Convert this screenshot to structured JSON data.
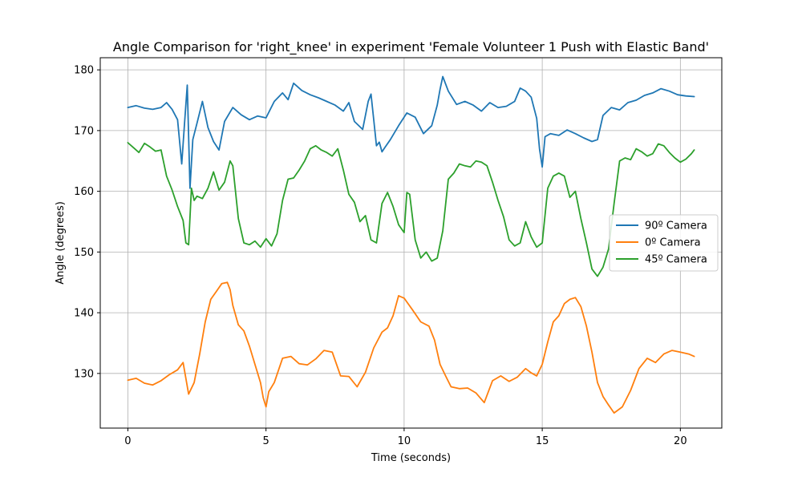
{
  "chart_data": {
    "type": "line",
    "title": "Angle Comparison for 'right_knee' in experiment 'Female Volunteer 1 Push with Elastic Band'",
    "xlabel": "Time (seconds)",
    "ylabel": "Angle (degrees)",
    "xlim": [
      -1,
      21.5
    ],
    "ylim": [
      121,
      182
    ],
    "xticks": [
      0,
      5,
      10,
      15,
      20
    ],
    "yticks": [
      130,
      140,
      150,
      160,
      170,
      180
    ],
    "grid": true,
    "legend_position": "center-right",
    "series": [
      {
        "name": "90º Camera",
        "color": "#1f77b4",
        "x": [
          0,
          0.3,
          0.6,
          0.9,
          1.2,
          1.4,
          1.6,
          1.8,
          1.95,
          2.05,
          2.15,
          2.25,
          2.35,
          2.5,
          2.7,
          2.9,
          3.1,
          3.3,
          3.5,
          3.8,
          4.1,
          4.4,
          4.7,
          5.0,
          5.3,
          5.6,
          5.8,
          6.0,
          6.3,
          6.6,
          6.9,
          7.2,
          7.5,
          7.8,
          8.0,
          8.2,
          8.5,
          8.7,
          8.8,
          8.9,
          9.0,
          9.1,
          9.2,
          9.3,
          9.5,
          9.8,
          10.1,
          10.4,
          10.7,
          11.0,
          11.2,
          11.3,
          11.4,
          11.6,
          11.9,
          12.2,
          12.5,
          12.8,
          13.1,
          13.4,
          13.7,
          14.0,
          14.2,
          14.4,
          14.6,
          14.8,
          14.9,
          15.0,
          15.1,
          15.3,
          15.6,
          15.9,
          16.2,
          16.5,
          16.8,
          17.0,
          17.2,
          17.5,
          17.8,
          18.1,
          18.4,
          18.7,
          19.0,
          19.3,
          19.6,
          19.9,
          20.2,
          20.5
        ],
        "y": [
          173.8,
          174.1,
          173.7,
          173.5,
          173.8,
          174.6,
          173.5,
          171.8,
          164.5,
          171.2,
          177.5,
          160.5,
          168.5,
          171.2,
          174.8,
          170.5,
          168.2,
          166.8,
          171.5,
          173.8,
          172.6,
          171.8,
          172.4,
          172.1,
          174.8,
          176.2,
          175.1,
          177.8,
          176.6,
          175.9,
          175.4,
          174.8,
          174.2,
          173.2,
          174.6,
          171.5,
          170.2,
          174.8,
          176.0,
          171.8,
          167.5,
          168.1,
          166.5,
          167.2,
          168.5,
          170.8,
          172.9,
          172.2,
          169.5,
          170.8,
          174.2,
          176.8,
          178.9,
          176.5,
          174.3,
          174.8,
          174.2,
          173.2,
          174.6,
          173.8,
          174.0,
          174.8,
          177.0,
          176.5,
          175.5,
          172.0,
          167.0,
          164.0,
          169.0,
          169.5,
          169.2,
          170.1,
          169.5,
          168.8,
          168.2,
          168.5,
          172.5,
          173.8,
          173.4,
          174.6,
          175.0,
          175.8,
          176.2,
          176.9,
          176.5,
          175.9,
          175.7,
          175.6
        ]
      },
      {
        "name": "0º Camera",
        "color": "#ff7f0e",
        "x": [
          0,
          0.3,
          0.6,
          0.9,
          1.2,
          1.5,
          1.8,
          2.0,
          2.2,
          2.4,
          2.6,
          2.8,
          3.0,
          3.2,
          3.4,
          3.6,
          3.7,
          3.8,
          4.0,
          4.2,
          4.4,
          4.6,
          4.8,
          4.9,
          5.0,
          5.1,
          5.3,
          5.6,
          5.9,
          6.2,
          6.5,
          6.8,
          7.1,
          7.4,
          7.7,
          8.0,
          8.3,
          8.6,
          8.9,
          9.2,
          9.4,
          9.6,
          9.8,
          10.0,
          10.3,
          10.6,
          10.9,
          11.1,
          11.3,
          11.5,
          11.7,
          12.0,
          12.3,
          12.6,
          12.9,
          13.2,
          13.5,
          13.8,
          14.1,
          14.4,
          14.6,
          14.8,
          15.0,
          15.2,
          15.4,
          15.6,
          15.8,
          16.0,
          16.2,
          16.4,
          16.6,
          16.8,
          17.0,
          17.2,
          17.4,
          17.6,
          17.9,
          18.2,
          18.5,
          18.8,
          19.1,
          19.4,
          19.7,
          20.0,
          20.3,
          20.5
        ],
        "y": [
          128.9,
          129.2,
          128.4,
          128.1,
          128.8,
          129.8,
          130.6,
          131.8,
          126.6,
          128.5,
          133.2,
          138.5,
          142.2,
          143.5,
          144.8,
          145.0,
          143.8,
          141.2,
          138.0,
          137.0,
          134.5,
          131.5,
          128.5,
          126.0,
          124.5,
          127.0,
          128.5,
          132.5,
          132.8,
          131.6,
          131.4,
          132.4,
          133.8,
          133.5,
          129.6,
          129.5,
          127.8,
          130.2,
          134.2,
          136.8,
          137.5,
          139.5,
          142.8,
          142.4,
          140.5,
          138.5,
          137.8,
          135.5,
          131.5,
          129.6,
          127.8,
          127.5,
          127.6,
          126.8,
          125.2,
          128.8,
          129.6,
          128.7,
          129.4,
          130.8,
          130.1,
          129.6,
          131.5,
          135.2,
          138.5,
          139.5,
          141.5,
          142.2,
          142.5,
          141.0,
          137.8,
          133.5,
          128.5,
          126.2,
          124.8,
          123.5,
          124.5,
          127.2,
          130.8,
          132.5,
          131.8,
          133.2,
          133.8,
          133.5,
          133.2,
          132.8
        ]
      },
      {
        "name": "45º Camera",
        "color": "#2ca02c",
        "x": [
          0,
          0.2,
          0.4,
          0.6,
          0.8,
          1.0,
          1.2,
          1.4,
          1.6,
          1.8,
          2.0,
          2.1,
          2.2,
          2.3,
          2.4,
          2.5,
          2.7,
          2.9,
          3.1,
          3.3,
          3.5,
          3.7,
          3.8,
          4.0,
          4.2,
          4.4,
          4.6,
          4.8,
          5.0,
          5.2,
          5.4,
          5.6,
          5.8,
          6.0,
          6.2,
          6.4,
          6.6,
          6.8,
          7.0,
          7.2,
          7.4,
          7.6,
          7.8,
          8.0,
          8.2,
          8.4,
          8.6,
          8.8,
          9.0,
          9.2,
          9.4,
          9.6,
          9.8,
          10.0,
          10.1,
          10.2,
          10.4,
          10.6,
          10.8,
          11.0,
          11.2,
          11.4,
          11.6,
          11.8,
          12.0,
          12.2,
          12.4,
          12.6,
          12.8,
          13.0,
          13.2,
          13.4,
          13.6,
          13.8,
          14.0,
          14.2,
          14.4,
          14.6,
          14.8,
          15.0,
          15.2,
          15.4,
          15.6,
          15.8,
          16.0,
          16.2,
          16.4,
          16.6,
          16.8,
          17.0,
          17.2,
          17.4,
          17.6,
          17.8,
          18.0,
          18.2,
          18.4,
          18.6,
          18.8,
          19.0,
          19.2,
          19.4,
          19.6,
          19.8,
          20.0,
          20.2,
          20.4,
          20.5
        ],
        "y": [
          168.0,
          167.2,
          166.4,
          167.9,
          167.3,
          166.6,
          166.8,
          162.5,
          160.2,
          157.5,
          155.2,
          151.5,
          151.2,
          160.5,
          158.5,
          159.2,
          158.8,
          160.5,
          163.2,
          160.2,
          161.5,
          165.0,
          164.2,
          155.5,
          151.5,
          151.2,
          151.8,
          150.8,
          152.2,
          151.0,
          153.0,
          158.5,
          162.0,
          162.2,
          163.5,
          165.0,
          167.0,
          167.5,
          166.8,
          166.4,
          165.8,
          167.0,
          163.5,
          159.5,
          158.2,
          155.0,
          156.0,
          152.0,
          151.5,
          158.0,
          159.8,
          157.5,
          154.5,
          153.2,
          159.8,
          159.5,
          152.0,
          149.0,
          150.0,
          148.5,
          149.0,
          153.5,
          162.0,
          163.0,
          164.5,
          164.2,
          164.0,
          165.0,
          164.8,
          164.2,
          161.5,
          158.5,
          155.8,
          152.0,
          151.0,
          151.5,
          155.0,
          152.5,
          150.8,
          151.5,
          160.5,
          162.5,
          163.0,
          162.5,
          159.0,
          160.0,
          155.5,
          151.5,
          147.2,
          146.0,
          147.5,
          150.5,
          158.0,
          165.0,
          165.5,
          165.2,
          167.0,
          166.5,
          165.8,
          166.2,
          167.8,
          167.5,
          166.4,
          165.5,
          164.8,
          165.3,
          166.2,
          166.8
        ]
      }
    ]
  }
}
